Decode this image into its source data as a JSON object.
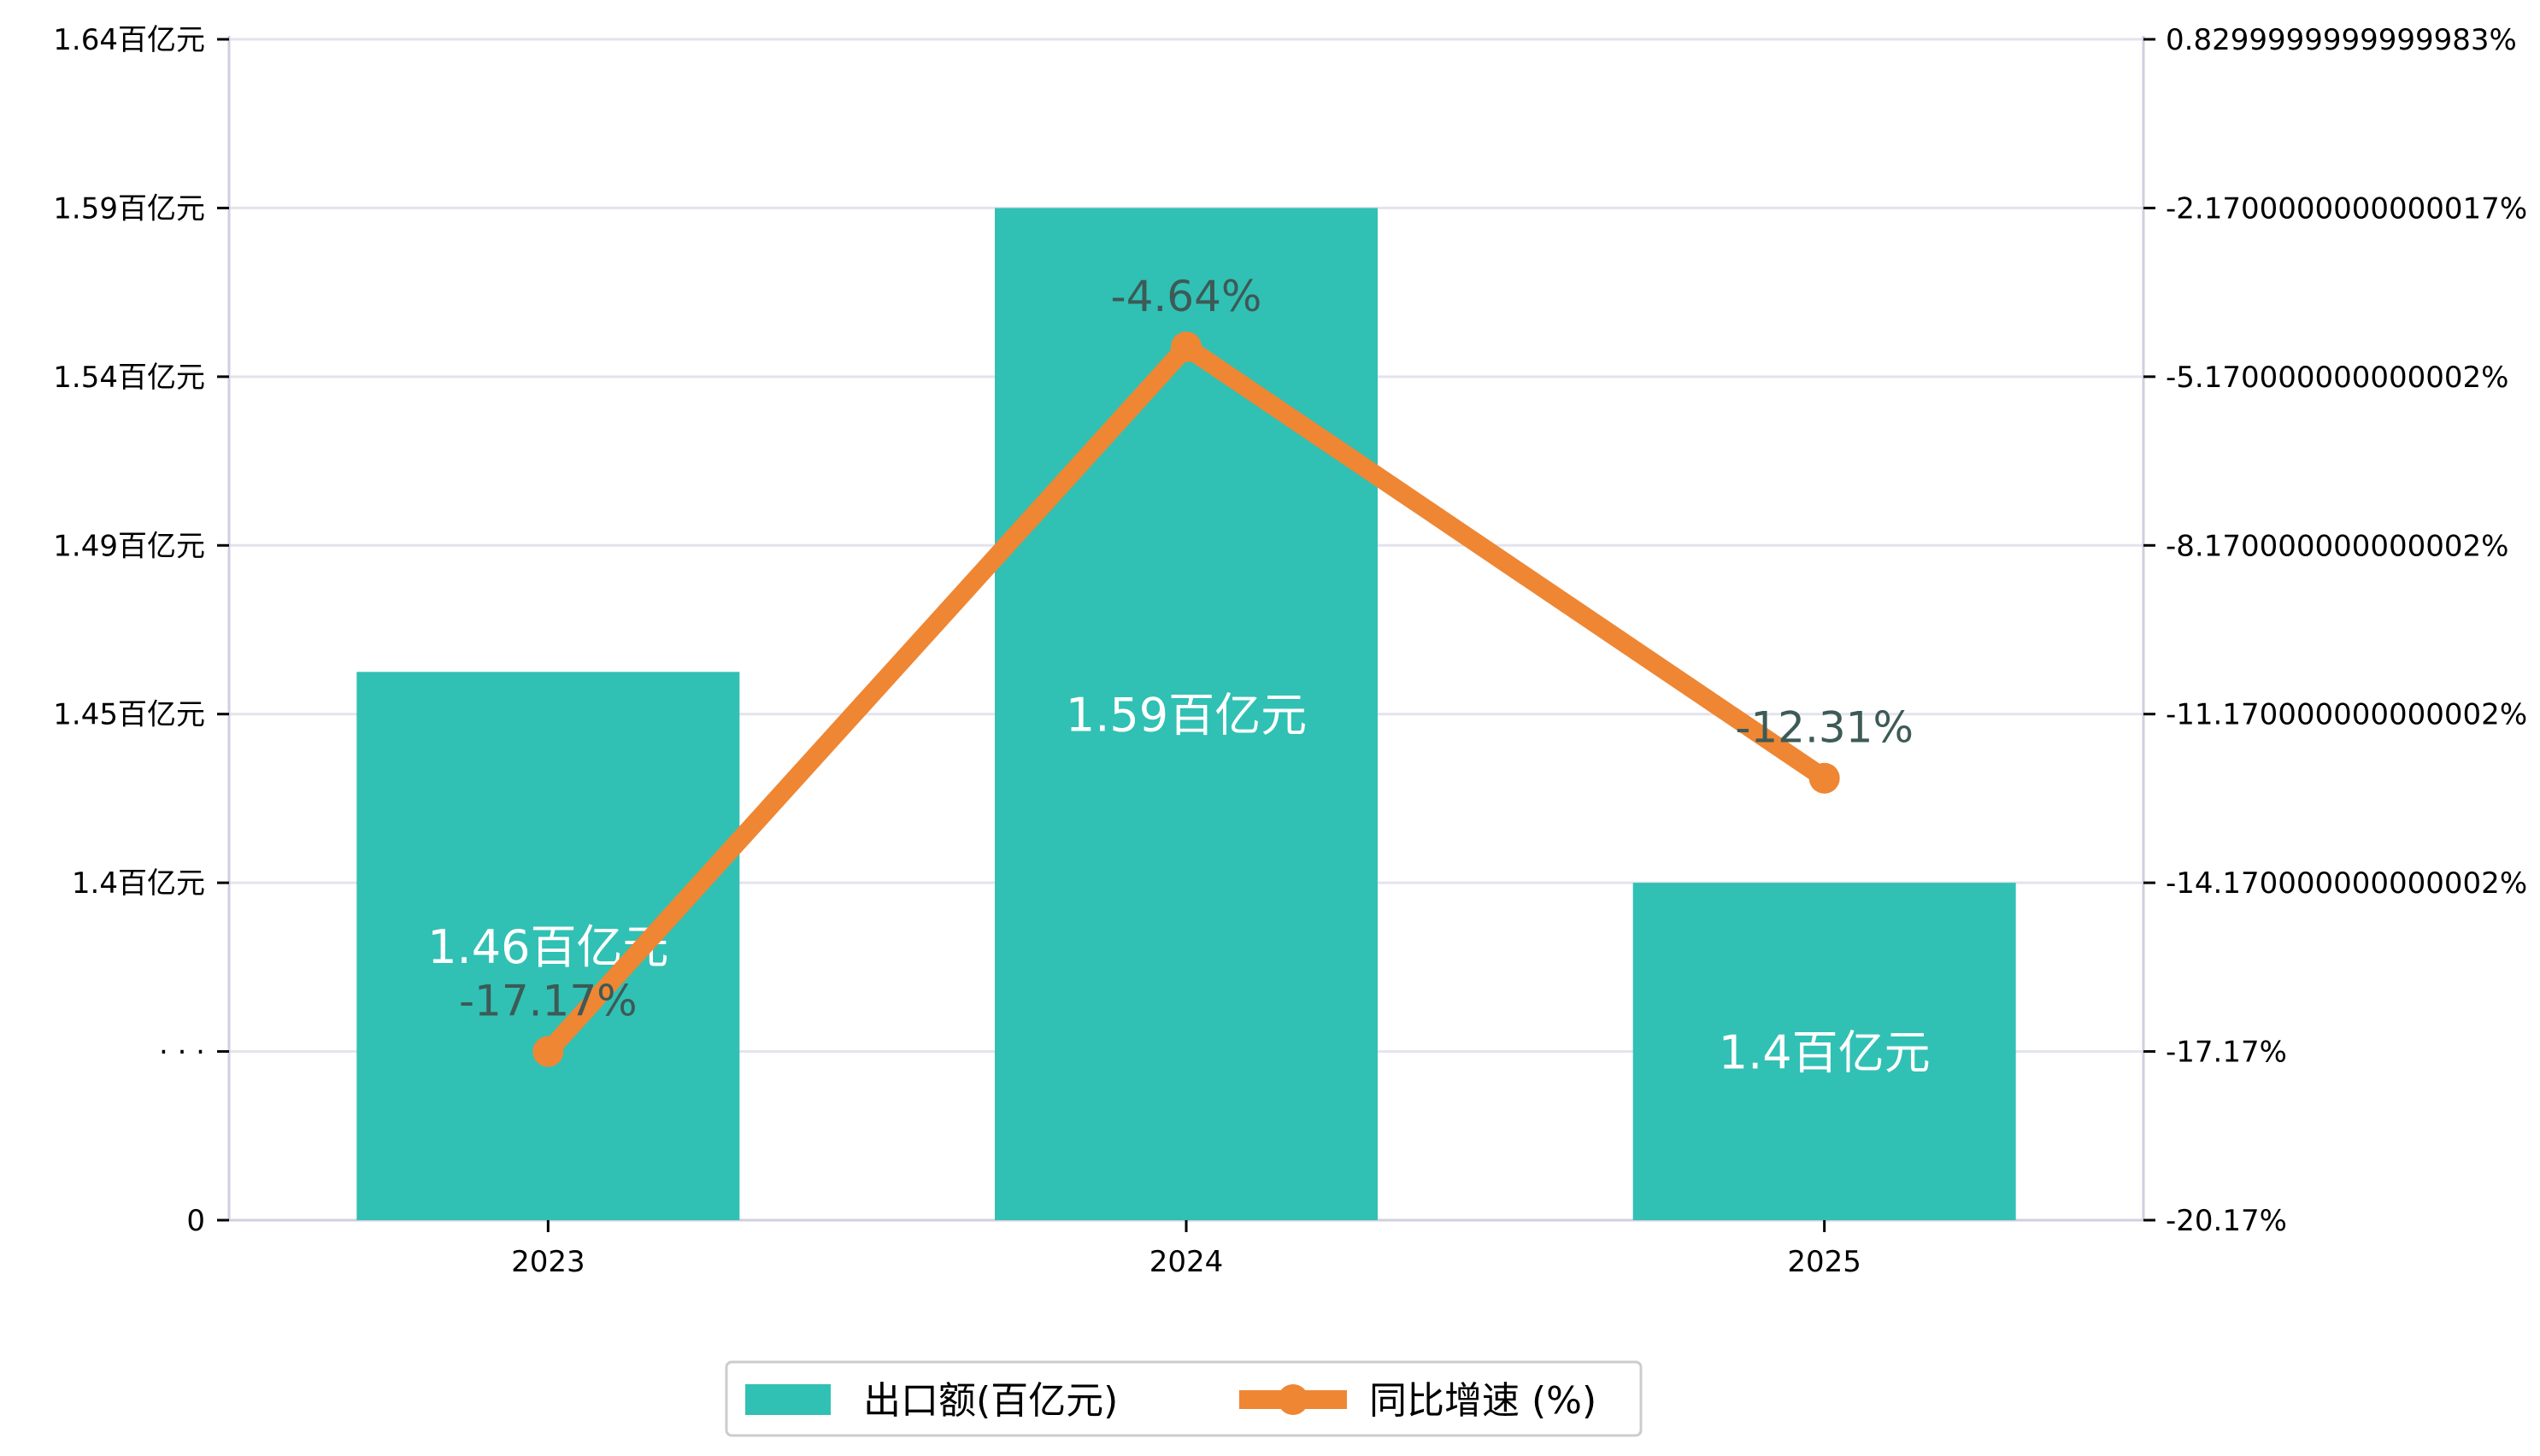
{
  "chart_data": {
    "type": "bar",
    "categories": [
      "2023",
      "2024",
      "2025"
    ],
    "series": [
      {
        "name": "出口额(百亿元)",
        "type": "bar",
        "axis": "left",
        "values": [
          1.46,
          1.59,
          1.4
        ],
        "labels": [
          "1.46百亿元",
          "1.59百亿元",
          "1.4百亿元"
        ],
        "color": "#31c0b4"
      },
      {
        "name": "同比增速 (%)",
        "type": "line",
        "axis": "right",
        "values": [
          -17.17,
          -4.64,
          -12.31
        ],
        "labels": [
          "-17.17%",
          "-4.64%",
          "-12.31%"
        ],
        "color": "#ef8633"
      }
    ],
    "left_axis": {
      "ticks": [
        {
          "value": 0,
          "label": "0"
        },
        {
          "value": 1.36,
          "label": "· · ·"
        },
        {
          "value": 1.4,
          "label": "1.4百亿元"
        },
        {
          "value": 1.45,
          "label": "1.45百亿元"
        },
        {
          "value": 1.49,
          "label": "1.49百亿元"
        },
        {
          "value": 1.54,
          "label": "1.54百亿元"
        },
        {
          "value": 1.59,
          "label": "1.59百亿元"
        },
        {
          "value": 1.64,
          "label": "1.64百亿元"
        }
      ]
    },
    "right_axis": {
      "ylim": [
        -20.17,
        0.83
      ],
      "ticks": [
        {
          "value": -20.17,
          "label": "-20.17%"
        },
        {
          "value": -17.17,
          "label": "-17.17%"
        },
        {
          "value": -14.17,
          "label": "-14.170000000000002%"
        },
        {
          "value": -11.17,
          "label": "-11.170000000000002%"
        },
        {
          "value": -8.17,
          "label": "-8.170000000000002%"
        },
        {
          "value": -5.17,
          "label": "-5.170000000000002%"
        },
        {
          "value": -2.17,
          "label": "-2.1700000000000017%"
        },
        {
          "value": 0.83,
          "label": "0.8299999999999983%"
        }
      ]
    },
    "grid": true,
    "legend": "bottom-center"
  },
  "colors": {
    "bar": "#31c0b4",
    "line": "#ef8633",
    "grid": "#e3e3ee",
    "axis": "#cfcfe0",
    "line_label": "#3d5a56"
  }
}
